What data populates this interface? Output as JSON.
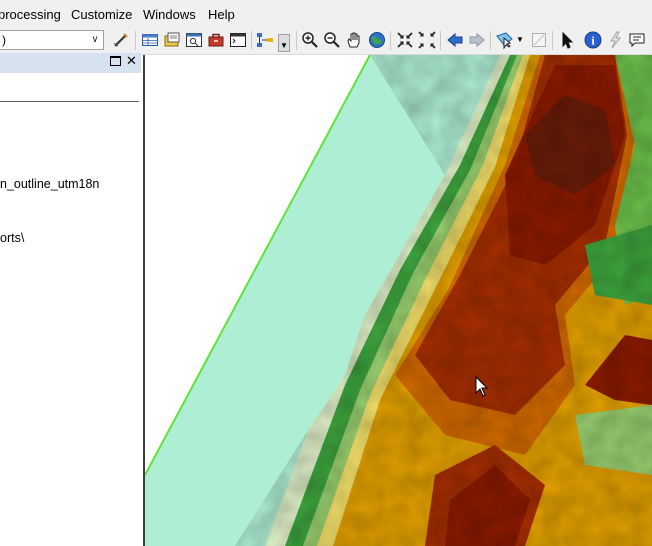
{
  "menu": [
    "processing",
    "Customize",
    "Windows",
    "Help"
  ],
  "toolbar": {
    "scale_value": ")",
    "icons": [
      "editor-icon",
      "table-icon",
      "catalog-icon",
      "search-window-icon",
      "arctoolbox-icon",
      "python-icon",
      "model-builder-icon",
      "zoom-in-icon",
      "zoom-out-icon",
      "pan-icon",
      "full-extent-icon",
      "fixed-zoom-in-icon",
      "fixed-zoom-out-icon",
      "back-icon",
      "forward-icon",
      "select-features-icon",
      "clear-selection-icon",
      "select-elements-icon",
      "identify-icon",
      "hyperlink-icon",
      "html-popup-icon"
    ]
  },
  "toc": {
    "items": [
      "n_outline_utm18n",
      "orts\\"
    ]
  },
  "colors": {
    "water": "#aeeed4",
    "shoreline": "#5fe33a",
    "high_elevation": "#8c1a00",
    "mid_elevation": "#e4a100",
    "low_vegetation": "#3ea63e"
  }
}
